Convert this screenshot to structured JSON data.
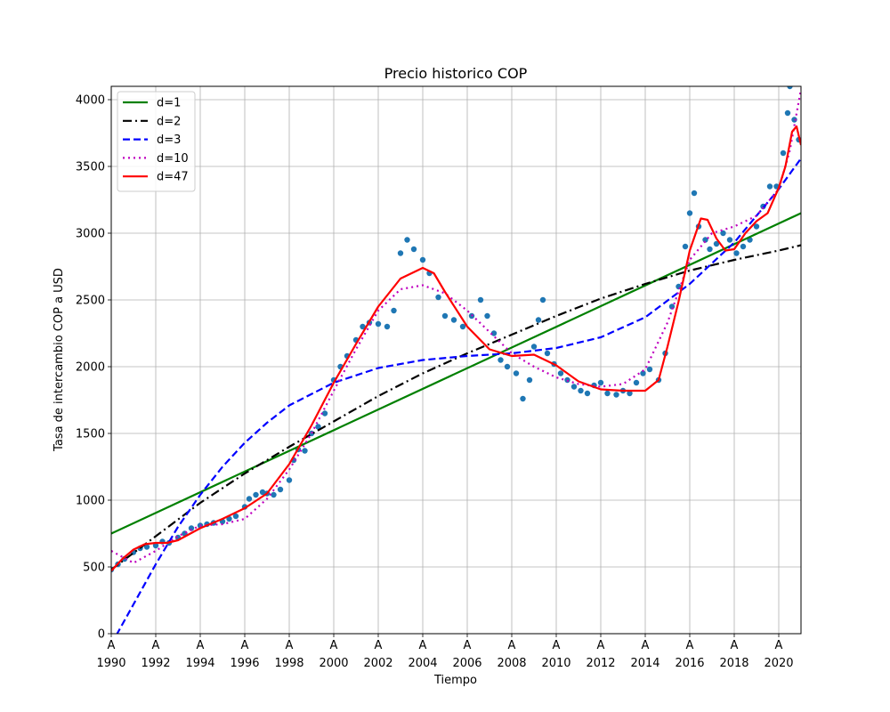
{
  "chart_data": {
    "type": "line",
    "title": "Precio historico COP",
    "xlabel": "Tiempo",
    "ylabel": "Tasa de intercambio COP a USD",
    "xlim": [
      1990,
      2021
    ],
    "ylim": [
      0,
      4100
    ],
    "x_ticks": [
      1990,
      1992,
      1994,
      1996,
      1998,
      2000,
      2002,
      2004,
      2006,
      2008,
      2010,
      2012,
      2014,
      2016,
      2018,
      2020
    ],
    "x_tick_prefix": "A",
    "y_ticks": [
      0,
      500,
      1000,
      1500,
      2000,
      2500,
      3000,
      3500,
      4000
    ],
    "grid": true,
    "legend_position": "top-left",
    "scatter": {
      "color": "#1f77b4",
      "points": [
        [
          1990.0,
          480
        ],
        [
          1990.3,
          520
        ],
        [
          1990.6,
          560
        ],
        [
          1991.0,
          610
        ],
        [
          1991.3,
          640
        ],
        [
          1991.6,
          650
        ],
        [
          1992.0,
          660
        ],
        [
          1992.3,
          690
        ],
        [
          1992.6,
          680
        ],
        [
          1993.0,
          720
        ],
        [
          1993.3,
          750
        ],
        [
          1993.6,
          790
        ],
        [
          1994.0,
          810
        ],
        [
          1994.3,
          820
        ],
        [
          1994.6,
          830
        ],
        [
          1995.0,
          840
        ],
        [
          1995.3,
          860
        ],
        [
          1995.6,
          880
        ],
        [
          1996.0,
          950
        ],
        [
          1996.2,
          1010
        ],
        [
          1996.5,
          1040
        ],
        [
          1996.8,
          1060
        ],
        [
          1997.0,
          1050
        ],
        [
          1997.3,
          1040
        ],
        [
          1997.6,
          1080
        ],
        [
          1998.0,
          1150
        ],
        [
          1998.2,
          1300
        ],
        [
          1998.4,
          1380
        ],
        [
          1998.7,
          1370
        ],
        [
          1999.0,
          1500
        ],
        [
          1999.3,
          1550
        ],
        [
          1999.6,
          1650
        ],
        [
          2000.0,
          1900
        ],
        [
          2000.3,
          2000
        ],
        [
          2000.6,
          2080
        ],
        [
          2001.0,
          2200
        ],
        [
          2001.3,
          2300
        ],
        [
          2001.6,
          2330
        ],
        [
          2002.0,
          2320
        ],
        [
          2002.4,
          2300
        ],
        [
          2002.7,
          2420
        ],
        [
          2003.0,
          2850
        ],
        [
          2003.3,
          2950
        ],
        [
          2003.6,
          2880
        ],
        [
          2004.0,
          2800
        ],
        [
          2004.3,
          2700
        ],
        [
          2004.7,
          2520
        ],
        [
          2005.0,
          2380
        ],
        [
          2005.4,
          2350
        ],
        [
          2005.8,
          2300
        ],
        [
          2006.2,
          2380
        ],
        [
          2006.6,
          2500
        ],
        [
          2006.9,
          2380
        ],
        [
          2007.2,
          2250
        ],
        [
          2007.5,
          2050
        ],
        [
          2007.8,
          2000
        ],
        [
          2008.2,
          1950
        ],
        [
          2008.5,
          1760
        ],
        [
          2008.8,
          1900
        ],
        [
          2009.0,
          2150
        ],
        [
          2009.2,
          2350
        ],
        [
          2009.4,
          2500
        ],
        [
          2009.6,
          2100
        ],
        [
          2009.9,
          2020
        ],
        [
          2010.2,
          1950
        ],
        [
          2010.5,
          1900
        ],
        [
          2010.8,
          1850
        ],
        [
          2011.1,
          1820
        ],
        [
          2011.4,
          1800
        ],
        [
          2011.7,
          1860
        ],
        [
          2012.0,
          1880
        ],
        [
          2012.3,
          1800
        ],
        [
          2012.7,
          1790
        ],
        [
          2013.0,
          1820
        ],
        [
          2013.3,
          1800
        ],
        [
          2013.6,
          1880
        ],
        [
          2013.9,
          1950
        ],
        [
          2014.2,
          1980
        ],
        [
          2014.6,
          1900
        ],
        [
          2014.9,
          2100
        ],
        [
          2015.2,
          2450
        ],
        [
          2015.5,
          2600
        ],
        [
          2015.8,
          2900
        ],
        [
          2016.0,
          3150
        ],
        [
          2016.2,
          3300
        ],
        [
          2016.4,
          3050
        ],
        [
          2016.7,
          2950
        ],
        [
          2016.9,
          2880
        ],
        [
          2017.2,
          2920
        ],
        [
          2017.5,
          3000
        ],
        [
          2017.8,
          2950
        ],
        [
          2018.1,
          2850
        ],
        [
          2018.4,
          2900
        ],
        [
          2018.7,
          2950
        ],
        [
          2019.0,
          3050
        ],
        [
          2019.3,
          3200
        ],
        [
          2019.6,
          3350
        ],
        [
          2019.9,
          3350
        ],
        [
          2020.2,
          3600
        ],
        [
          2020.4,
          3900
        ],
        [
          2020.5,
          4100
        ],
        [
          2020.7,
          3850
        ],
        [
          2020.9,
          3700
        ]
      ]
    },
    "series": [
      {
        "name": "d=1",
        "color": "#008000",
        "dash": "solid",
        "x": [
          1990,
          2021
        ],
        "y": [
          750,
          3150
        ]
      },
      {
        "name": "d=2",
        "color": "#000000",
        "dash": "dashdot",
        "x": [
          1990,
          1992,
          1994,
          1996,
          1998,
          2000,
          2002,
          2004,
          2006,
          2008,
          2010,
          2012,
          2014,
          2016,
          2018,
          2020,
          2021
        ],
        "y": [
          480,
          730,
          980,
          1200,
          1400,
          1590,
          1780,
          1950,
          2100,
          2240,
          2380,
          2510,
          2620,
          2720,
          2800,
          2870,
          2910
        ]
      },
      {
        "name": "d=3",
        "color": "#0000ff",
        "dash": "dashed",
        "x": [
          1990,
          1991,
          1992,
          1993,
          1994,
          1995,
          1996,
          1997,
          1998,
          2000,
          2002,
          2004,
          2006,
          2008,
          2010,
          2012,
          2014,
          2016,
          2018,
          2020,
          2021
        ],
        "y": [
          -80,
          220,
          520,
          800,
          1040,
          1250,
          1430,
          1580,
          1710,
          1880,
          1990,
          2050,
          2080,
          2100,
          2140,
          2220,
          2370,
          2620,
          2930,
          3330,
          3560
        ]
      },
      {
        "name": "d=10",
        "color": "#bf00bf",
        "dash": "dotted",
        "x": [
          1990,
          1991,
          1992,
          1993,
          1994,
          1995,
          1996,
          1997,
          1998,
          1999,
          2000,
          2001,
          2002,
          2003,
          2004,
          2005,
          2006,
          2007,
          2008,
          2009,
          2010,
          2011,
          2012,
          2013,
          2014,
          2015,
          2016,
          2017,
          2018,
          2019,
          2020,
          2020.5,
          2021
        ],
        "y": [
          620,
          530,
          620,
          730,
          810,
          820,
          860,
          1010,
          1230,
          1500,
          1820,
          2130,
          2420,
          2580,
          2610,
          2550,
          2420,
          2260,
          2100,
          2000,
          1920,
          1870,
          1850,
          1870,
          1980,
          2330,
          2800,
          3000,
          3050,
          3130,
          3330,
          3620,
          4080
        ]
      },
      {
        "name": "d=47",
        "color": "#ff0000",
        "dash": "solid",
        "x": [
          1990,
          1990.5,
          1991,
          1991.5,
          1992,
          1992.5,
          1993,
          1994,
          1995,
          1996,
          1997,
          1998,
          1999,
          2000,
          2001,
          2002,
          2003,
          2004,
          2004.5,
          2005,
          2006,
          2007,
          2008,
          2009,
          2010,
          2011,
          2012,
          2013,
          2014,
          2014.6,
          2015,
          2015.5,
          2016,
          2016.5,
          2016.8,
          2017.2,
          2017.6,
          2018,
          2018.5,
          2019,
          2019.5,
          2020,
          2020.3,
          2020.6,
          2020.8,
          2021
        ],
        "y": [
          470,
          560,
          630,
          670,
          680,
          680,
          700,
          790,
          860,
          940,
          1050,
          1270,
          1560,
          1880,
          2170,
          2450,
          2660,
          2740,
          2700,
          2560,
          2300,
          2130,
          2080,
          2090,
          2010,
          1890,
          1830,
          1820,
          1820,
          1900,
          2150,
          2490,
          2870,
          3110,
          3100,
          2960,
          2870,
          2880,
          3000,
          3090,
          3150,
          3340,
          3500,
          3760,
          3800,
          3660
        ]
      }
    ]
  }
}
